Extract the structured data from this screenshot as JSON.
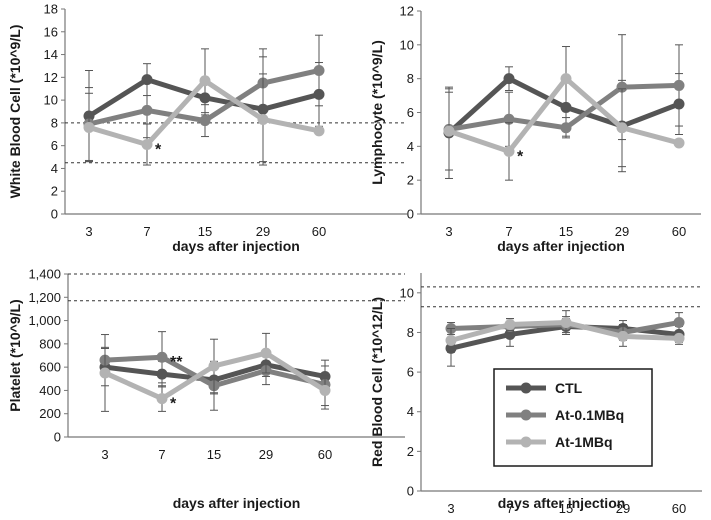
{
  "colors": {
    "CTL": "#555555",
    "At-0.1MBq": "#808080",
    "At-1MBq": "#b3b3b3",
    "axis": "#777777",
    "ref": "#333333"
  },
  "legend": {
    "entries": [
      "CTL",
      "At-0.1MBq",
      "At-1MBq"
    ]
  },
  "chart_data": [
    {
      "id": "wbc",
      "type": "line",
      "categories": [
        "3",
        "7",
        "15",
        "29",
        "60"
      ],
      "ylabel": "White Blood Cell (*10^9/L)",
      "xlabel": "days after injection",
      "ylim": [
        0,
        18
      ],
      "yticks": [
        "0",
        "2",
        "4",
        "6",
        "8",
        "10",
        "12",
        "14",
        "16",
        "18"
      ],
      "ytick_values": [
        0,
        2,
        4,
        6,
        8,
        10,
        12,
        14,
        16,
        18
      ],
      "ref_lines": [
        4.5,
        8.0
      ],
      "series": [
        {
          "name": "CTL",
          "values": [
            8.6,
            11.8,
            10.2,
            9.2,
            10.5
          ],
          "err": [
            4.0,
            1.4,
            1.5,
            4.6,
            2.8
          ]
        },
        {
          "name": "At-0.1MBq",
          "values": [
            7.9,
            9.1,
            8.2,
            11.5,
            12.6
          ],
          "err": [
            3.2,
            2.4,
            1.4,
            3.0,
            3.1
          ]
        },
        {
          "name": "At-1MBq",
          "values": [
            7.6,
            6.1,
            11.7,
            8.3,
            7.3
          ],
          "err": [
            3.0,
            1.8,
            2.8,
            4.0,
            0.0
          ]
        }
      ],
      "annotations": [
        {
          "cat": 1,
          "value": 6.1,
          "text": "*"
        }
      ]
    },
    {
      "id": "lym",
      "type": "line",
      "categories": [
        "3",
        "7",
        "15",
        "29",
        "60"
      ],
      "ylabel": "Lymphocyte (*10^9/L)",
      "xlabel": "days after injection",
      "ylim": [
        0,
        12
      ],
      "yticks": [
        "0",
        "2",
        "4",
        "6",
        "8",
        "10",
        "12"
      ],
      "ytick_values": [
        0,
        2,
        4,
        6,
        8,
        10,
        12
      ],
      "ref_lines": [],
      "series": [
        {
          "name": "CTL",
          "values": [
            4.8,
            8.0,
            6.3,
            5.2,
            6.5
          ],
          "err": [
            2.7,
            0.7,
            1.7,
            2.7,
            1.8
          ]
        },
        {
          "name": "At-0.1MBq",
          "values": [
            5.0,
            5.6,
            5.1,
            7.5,
            7.6
          ],
          "err": [
            2.4,
            1.6,
            0.6,
            3.1,
            2.4
          ]
        },
        {
          "name": "At-1MBq",
          "values": [
            4.9,
            3.7,
            8.0,
            5.1,
            4.2
          ],
          "err": [
            2.3,
            1.7,
            1.9,
            2.3,
            0.0
          ]
        }
      ],
      "annotations": [
        {
          "cat": 1,
          "value": 3.7,
          "text": "*"
        }
      ]
    },
    {
      "id": "plt",
      "type": "line",
      "categories": [
        "3",
        "7",
        "15",
        "29",
        "60"
      ],
      "ylabel": "Platelet (*10^9/L)",
      "xlabel": "days after injection",
      "ylim": [
        0,
        1400
      ],
      "yticks": [
        "0",
        "200",
        "400",
        "600",
        "800",
        "1,000",
        "1,200",
        "1,400"
      ],
      "ytick_values": [
        0,
        200,
        400,
        600,
        800,
        1000,
        1200,
        1400
      ],
      "ref_lines": [
        1170,
        1400
      ],
      "series": [
        {
          "name": "CTL",
          "values": [
            600,
            540,
            490,
            620,
            520
          ],
          "err": [
            160,
            110,
            120,
            100,
            90
          ]
        },
        {
          "name": "At-0.1MBq",
          "values": [
            660,
            685,
            440,
            570,
            450
          ],
          "err": [
            110,
            220,
            210,
            120,
            210
          ]
        },
        {
          "name": "At-1MBq",
          "values": [
            550,
            330,
            610,
            720,
            400
          ],
          "err": [
            330,
            110,
            230,
            170,
            130
          ]
        }
      ],
      "annotations": [
        {
          "cat": 1,
          "value": 685,
          "text": "**"
        },
        {
          "cat": 1,
          "value": 330,
          "text": "*"
        }
      ]
    },
    {
      "id": "rbc",
      "type": "line",
      "categories": [
        "3",
        "7",
        "15",
        "29",
        "60"
      ],
      "ylabel": "Red Blood Cell (*10^12/L)",
      "xlabel": "days after injection",
      "ylim": [
        0,
        11
      ],
      "yticks": [
        "0",
        "2",
        "4",
        "6",
        "8",
        "10"
      ],
      "ytick_values": [
        0,
        2,
        4,
        6,
        8,
        10
      ],
      "ref_lines": [
        9.3,
        10.3
      ],
      "series": [
        {
          "name": "CTL",
          "values": [
            7.2,
            7.9,
            8.3,
            8.2,
            7.9
          ],
          "err": [
            0.9,
            0.6,
            0.4,
            0.4,
            0.4
          ]
        },
        {
          "name": "At-0.1MBq",
          "values": [
            8.2,
            8.3,
            8.4,
            8.0,
            8.5
          ],
          "err": [
            0.3,
            0.4,
            0.4,
            0.4,
            0.5
          ]
        },
        {
          "name": "At-1MBq",
          "values": [
            7.6,
            8.4,
            8.5,
            7.8,
            7.7
          ],
          "err": [
            0.6,
            0.3,
            0.6,
            0.5,
            0.3
          ]
        }
      ],
      "annotations": []
    }
  ]
}
